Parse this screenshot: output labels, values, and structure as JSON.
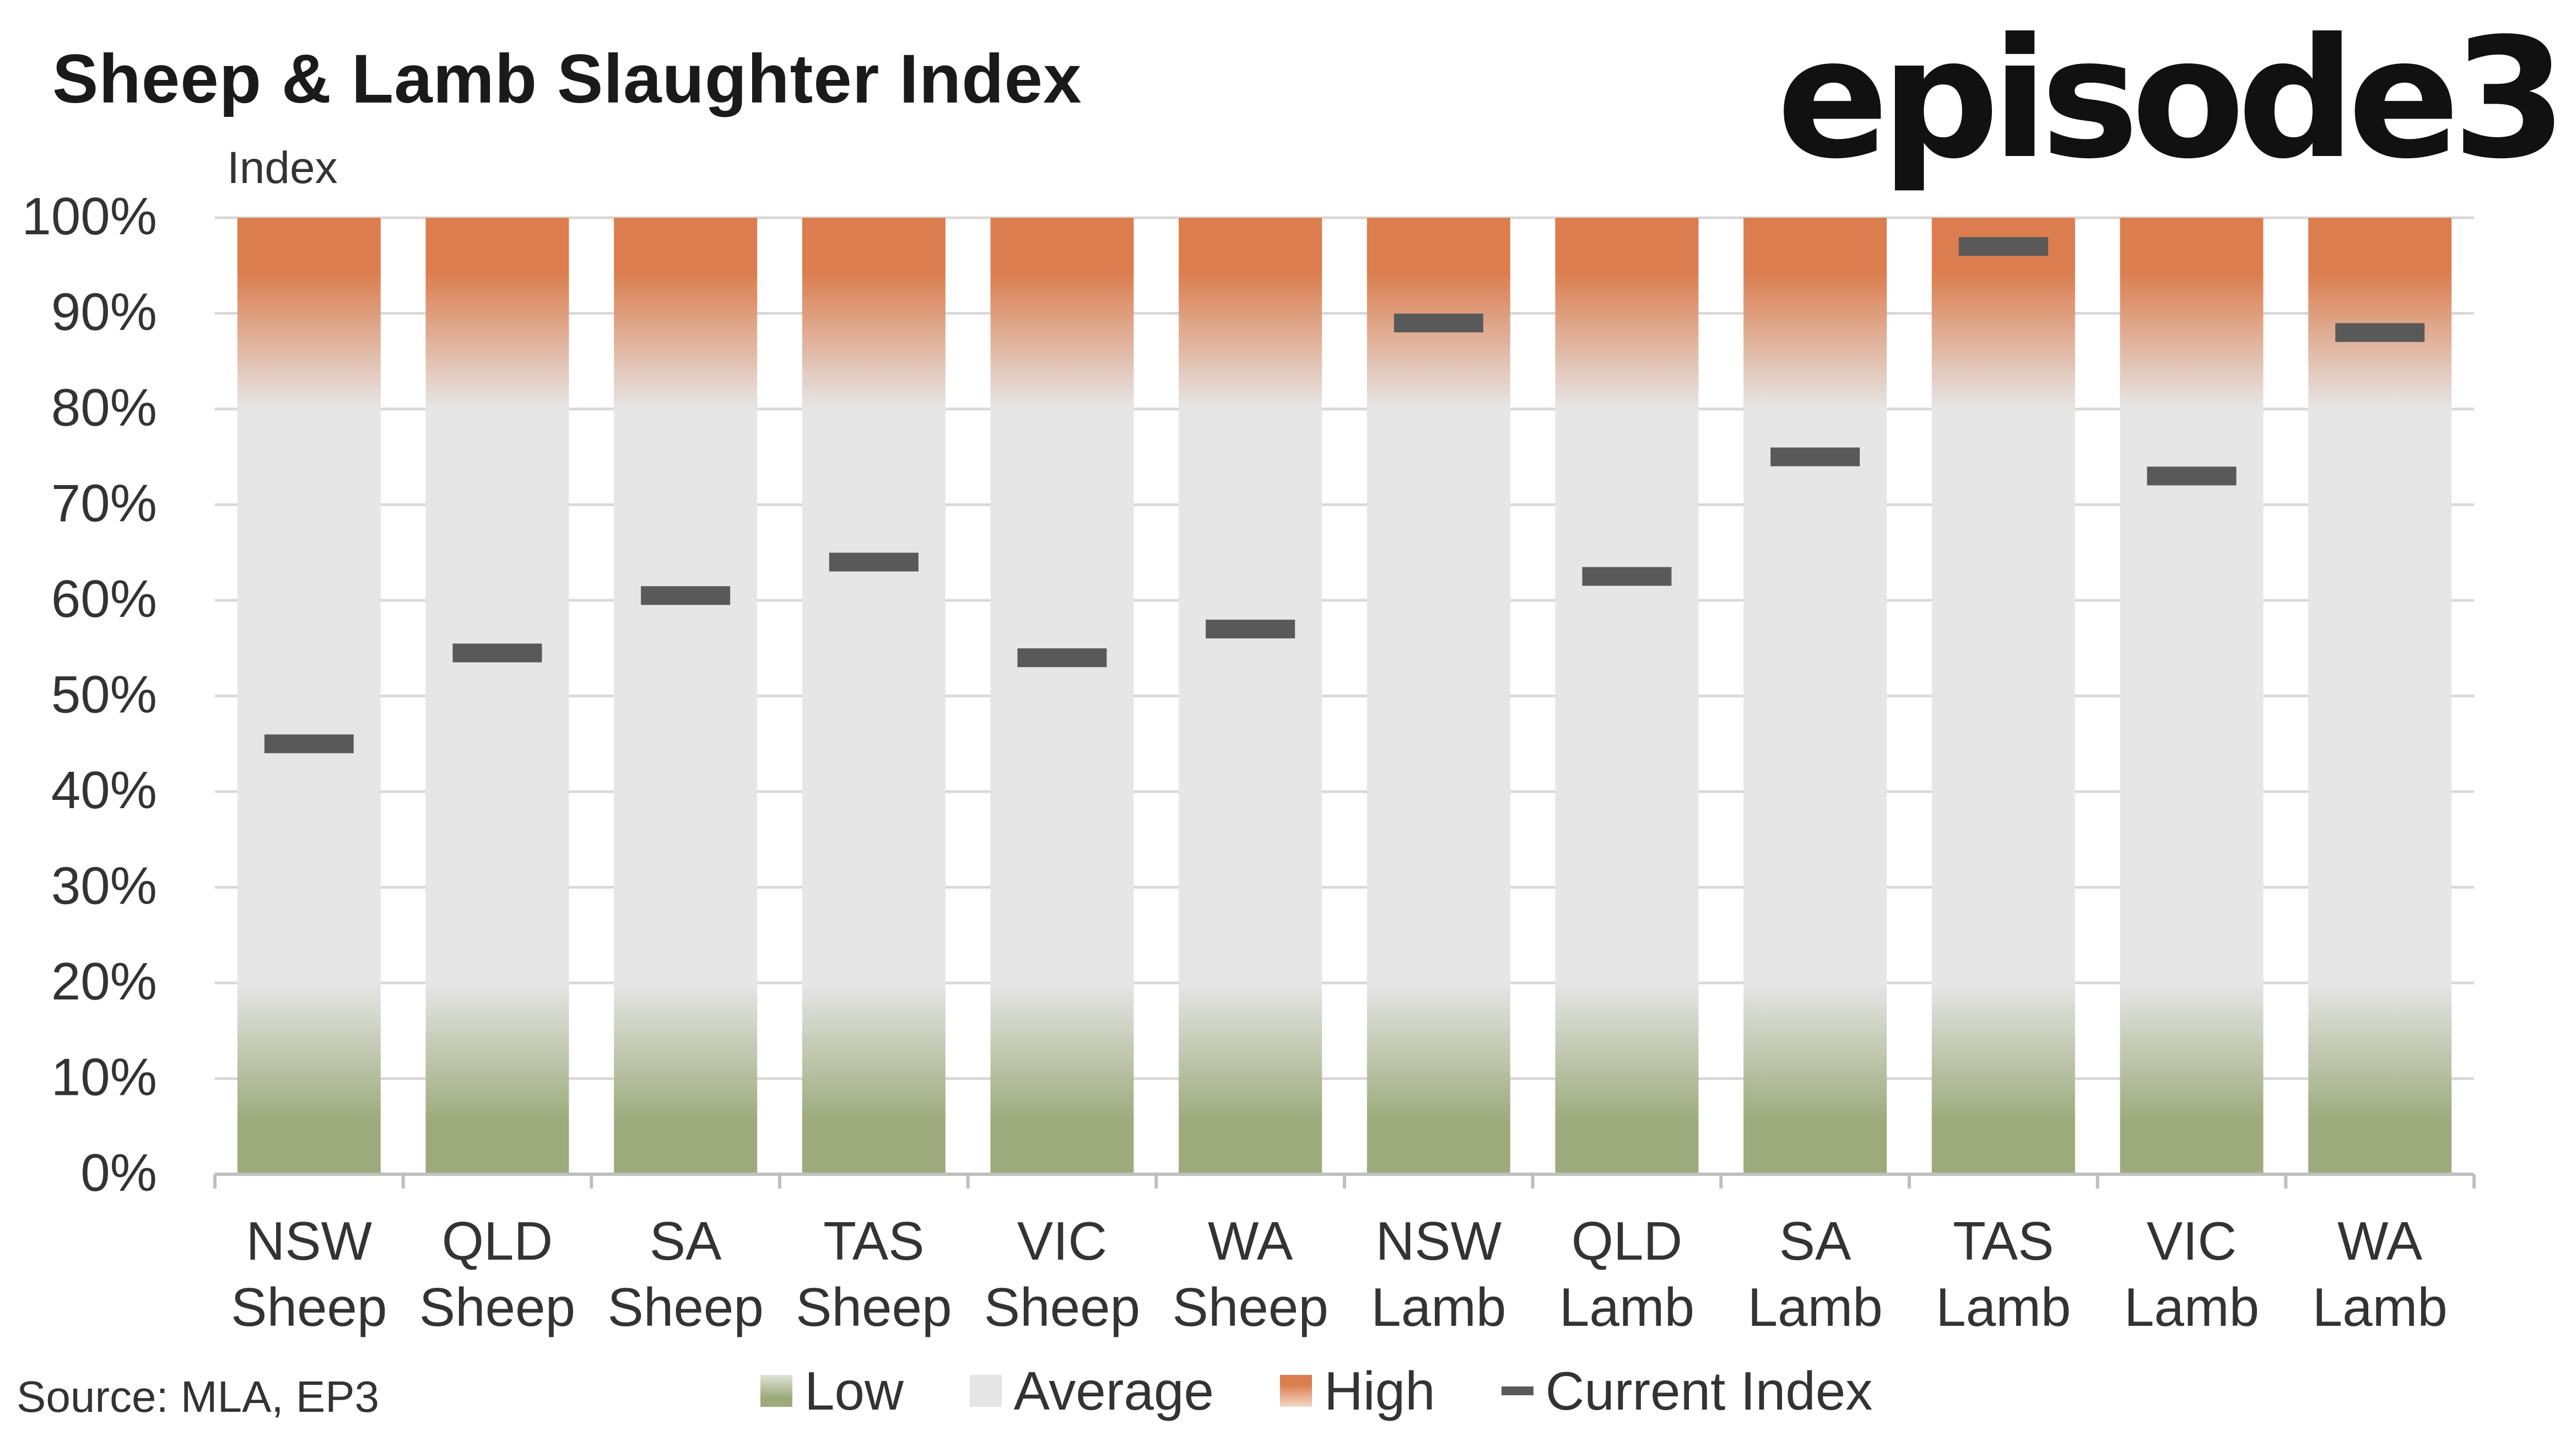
{
  "title": "Sheep & Lamb Slaughter Index",
  "logo": "episode3",
  "source": "Source: MLA, EP3",
  "legend": {
    "low": "Low",
    "average": "Average",
    "high": "High",
    "current": "Current Index"
  },
  "colors": {
    "high": "#db7d4e",
    "average": "#e6e6e6",
    "low": "#9dab7c",
    "marker": "#595959",
    "axis": "#bfbfbf"
  },
  "chart_data": {
    "type": "bar",
    "title": "Sheep & Lamb Slaughter Index",
    "ylabel": "Index",
    "ylim": [
      0,
      100
    ],
    "yticks": [
      "0%",
      "10%",
      "20%",
      "30%",
      "40%",
      "50%",
      "60%",
      "70%",
      "80%",
      "90%",
      "100%"
    ],
    "categories": [
      [
        "NSW",
        "Sheep"
      ],
      [
        "QLD",
        "Sheep"
      ],
      [
        "SA",
        "Sheep"
      ],
      [
        "TAS",
        "Sheep"
      ],
      [
        "VIC",
        "Sheep"
      ],
      [
        "WA",
        "Sheep"
      ],
      [
        "NSW",
        "Lamb"
      ],
      [
        "QLD",
        "Lamb"
      ],
      [
        "SA",
        "Lamb"
      ],
      [
        "TAS",
        "Lamb"
      ],
      [
        "VIC",
        "Lamb"
      ],
      [
        "WA",
        "Lamb"
      ]
    ],
    "series": [
      {
        "name": "Low",
        "values": [
          20,
          20,
          20,
          20,
          20,
          20,
          20,
          20,
          20,
          20,
          20,
          20
        ]
      },
      {
        "name": "Average",
        "values": [
          60,
          60,
          60,
          60,
          60,
          60,
          60,
          60,
          60,
          60,
          60,
          60
        ]
      },
      {
        "name": "High",
        "values": [
          20,
          20,
          20,
          20,
          20,
          20,
          20,
          20,
          20,
          20,
          20,
          20
        ]
      },
      {
        "name": "Current Index",
        "values": [
          45,
          54.5,
          60.5,
          64,
          54,
          57,
          89,
          62.5,
          75,
          97,
          73,
          88
        ]
      }
    ],
    "grid": true,
    "legend_position": "bottom"
  }
}
